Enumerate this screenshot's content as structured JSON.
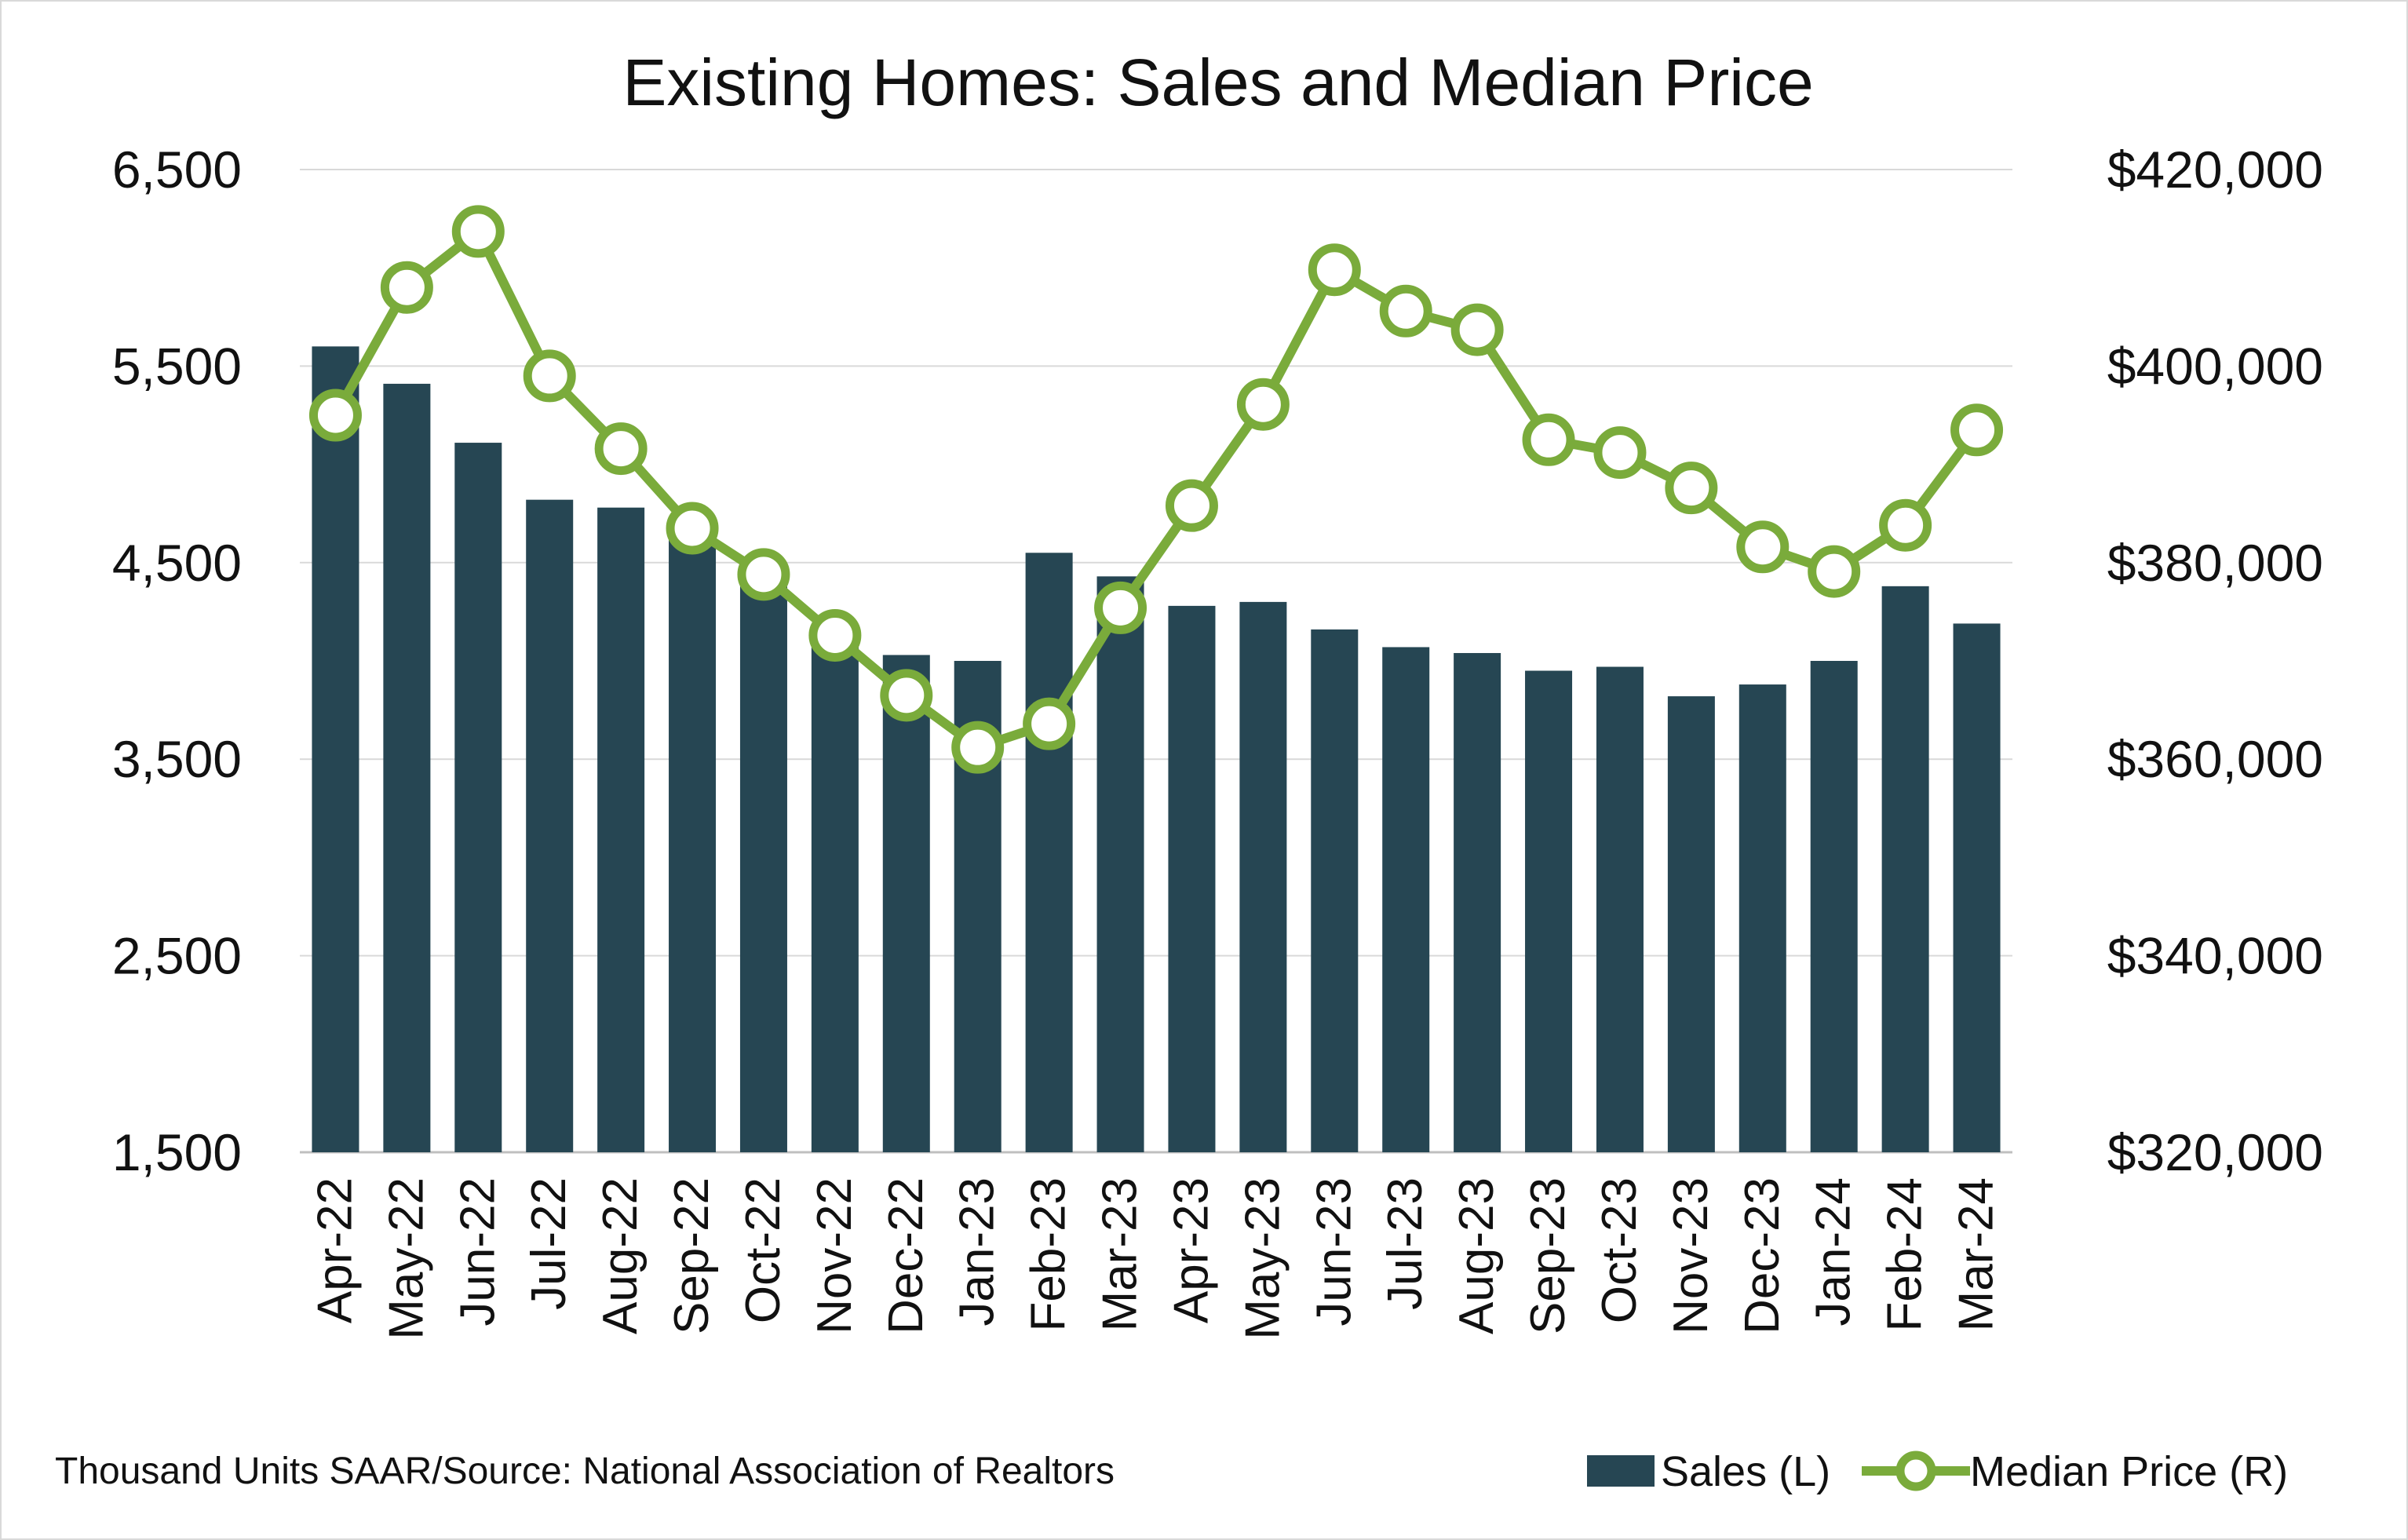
{
  "chart_data": {
    "type": "bar+line",
    "title": "Existing Homes: Sales and Median Price",
    "footnote": "Thousand Units SAAR/Source: National Association of Realtors",
    "categories": [
      "Apr-22",
      "May-22",
      "Jun-22",
      "Jul-22",
      "Aug-22",
      "Sep-22",
      "Oct-22",
      "Nov-22",
      "Dec-22",
      "Jan-23",
      "Feb-23",
      "Mar-23",
      "Apr-23",
      "May-23",
      "Jun-23",
      "Jul-23",
      "Aug-23",
      "Sep-23",
      "Oct-23",
      "Nov-23",
      "Dec-23",
      "Jan-24",
      "Feb-24",
      "Mar-24"
    ],
    "series": [
      {
        "name": "Sales (L)",
        "type": "bar",
        "axis": "left",
        "color": "#264653",
        "values": [
          5600,
          5410,
          5110,
          4820,
          4780,
          4700,
          4430,
          4090,
          4030,
          4000,
          4550,
          4430,
          4280,
          4300,
          4160,
          4070,
          4040,
          3950,
          3970,
          3820,
          3880,
          4000,
          4380,
          4190
        ]
      },
      {
        "name": "Median Price (R)",
        "type": "line",
        "axis": "right",
        "color": "#7aab3b",
        "values": [
          395000,
          408000,
          413700,
          399000,
          391600,
          383500,
          378800,
          372600,
          366500,
          361200,
          363600,
          375400,
          385800,
          396100,
          409800,
          405600,
          403700,
          392500,
          391200,
          387600,
          381600,
          379100,
          383800,
          393500
        ]
      }
    ],
    "y_left": {
      "min": 1500,
      "max": 6500,
      "ticks": [
        "1,500",
        "2,500",
        "3,500",
        "4,500",
        "5,500",
        "6,500"
      ]
    },
    "y_right": {
      "min": 320000,
      "max": 420000,
      "ticks": [
        "$320,000",
        "$340,000",
        "$360,000",
        "$380,000",
        "$400,000",
        "$420,000"
      ]
    },
    "grid": true,
    "legend": {
      "position": "bottom-right",
      "items": [
        "Sales (L)",
        "Median Price (R)"
      ]
    }
  }
}
